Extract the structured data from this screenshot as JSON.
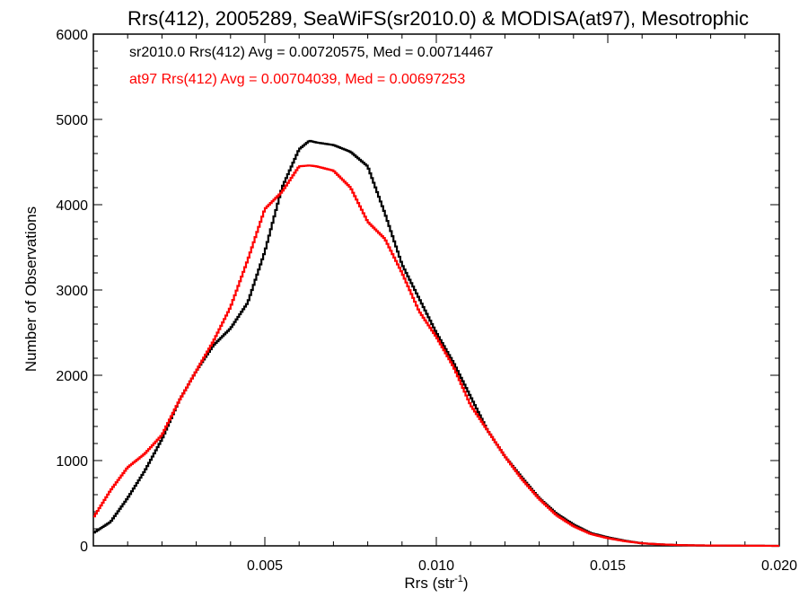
{
  "chart_data": {
    "type": "line",
    "title": "Rrs(412), 2005289, SeaWiFS(sr2010.0) & MODISA(at97), Mesotrophic",
    "xlabel": "Rrs (str",
    "xlabel_sup": "-1",
    "xlabel_close": ")",
    "ylabel": "Number of Observations",
    "xlim": [
      0.0,
      0.02
    ],
    "ylim": [
      0,
      6000
    ],
    "x_ticks": [
      {
        "value": 0.005,
        "label": "0.005"
      },
      {
        "value": 0.01,
        "label": "0.010"
      },
      {
        "value": 0.015,
        "label": "0.015"
      },
      {
        "value": 0.02,
        "label": "0.020"
      }
    ],
    "y_ticks": [
      {
        "value": 0,
        "label": "0"
      },
      {
        "value": 1000,
        "label": "1000"
      },
      {
        "value": 2000,
        "label": "2000"
      },
      {
        "value": 3000,
        "label": "3000"
      },
      {
        "value": 4000,
        "label": "4000"
      },
      {
        "value": 5000,
        "label": "5000"
      },
      {
        "value": 6000,
        "label": "6000"
      }
    ],
    "grid": false,
    "legend_position": "top-left",
    "series": [
      {
        "name": "sr2010.0 Rrs(412) Avg = 0.00720575, Med = 0.00714467",
        "color": "#000000",
        "x": [
          0.0,
          0.0005,
          0.001,
          0.0015,
          0.002,
          0.0025,
          0.003,
          0.0035,
          0.004,
          0.0045,
          0.005,
          0.0055,
          0.006,
          0.0063,
          0.0065,
          0.007,
          0.0075,
          0.008,
          0.0085,
          0.009,
          0.0095,
          0.01,
          0.0105,
          0.011,
          0.0115,
          0.012,
          0.0125,
          0.013,
          0.0135,
          0.014,
          0.0145,
          0.015,
          0.0155,
          0.016,
          0.0165,
          0.017,
          0.0175,
          0.018,
          0.0185,
          0.019,
          0.0195,
          0.02
        ],
        "y": [
          150,
          280,
          560,
          880,
          1250,
          1700,
          2050,
          2350,
          2550,
          2850,
          3450,
          4200,
          4650,
          4750,
          4730,
          4700,
          4620,
          4450,
          3900,
          3300,
          2900,
          2500,
          2150,
          1750,
          1350,
          1050,
          800,
          560,
          380,
          250,
          150,
          100,
          60,
          30,
          18,
          10,
          6,
          4,
          3,
          2,
          1,
          0
        ]
      },
      {
        "name": "at97 Rrs(412) Avg = 0.00704039, Med = 0.00697253",
        "color": "#ff0000",
        "x": [
          0.0,
          0.0005,
          0.001,
          0.0015,
          0.002,
          0.0025,
          0.003,
          0.0035,
          0.004,
          0.0045,
          0.005,
          0.0055,
          0.006,
          0.0063,
          0.0065,
          0.007,
          0.0075,
          0.008,
          0.0085,
          0.009,
          0.0095,
          0.01,
          0.0105,
          0.011,
          0.0115,
          0.012,
          0.0125,
          0.013,
          0.0135,
          0.014,
          0.0145,
          0.015,
          0.0155,
          0.016,
          0.0165,
          0.017,
          0.0175,
          0.018,
          0.0185,
          0.019,
          0.0195,
          0.02
        ],
        "y": [
          330,
          650,
          920,
          1080,
          1300,
          1700,
          2050,
          2400,
          2800,
          3350,
          3950,
          4150,
          4450,
          4460,
          4450,
          4400,
          4200,
          3800,
          3600,
          3200,
          2750,
          2450,
          2100,
          1650,
          1350,
          1050,
          780,
          550,
          360,
          230,
          140,
          90,
          55,
          30,
          18,
          10,
          6,
          4,
          3,
          2,
          1,
          0
        ]
      }
    ]
  }
}
